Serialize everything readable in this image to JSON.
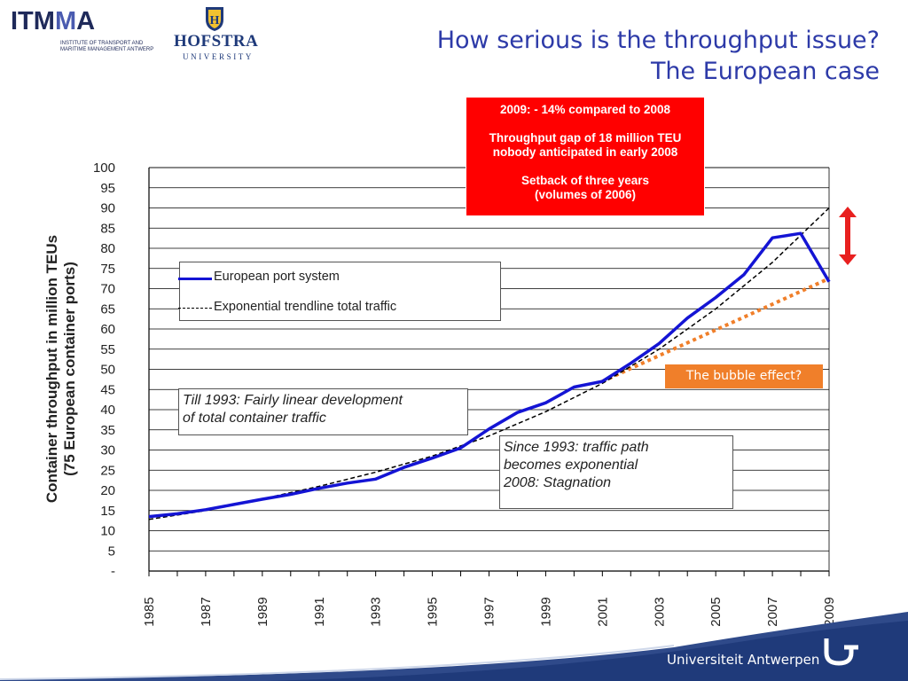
{
  "logos": {
    "itmma": {
      "wordmark": "ITMMA",
      "subtitle_line1": "INSTITUTE OF TRANSPORT AND",
      "subtitle_line2": "MARITIME MANAGEMENT ANTWERP"
    },
    "hofstra": {
      "name": "HOFSTRA",
      "sub": "UNIVERSITY"
    },
    "footer": {
      "name": "Universiteit Antwerpen"
    }
  },
  "title": {
    "line1": "How serious is the throughput issue?",
    "line2": "The European case"
  },
  "callout": {
    "line1": "2009: - 14% compared to 2008",
    "line2": "Throughput gap of 18 million TEU",
    "line3": "nobody anticipated in early 2008",
    "line4": "Setback of three years",
    "line5": "(volumes of 2006)"
  },
  "bubble_label": "The bubble effect?",
  "notes": {
    "till1993": {
      "line1": "Till 1993: Fairly linear development",
      "line2": "of total container traffic"
    },
    "since1993": {
      "line1": "Since 1993: traffic path",
      "line2": "becomes exponential",
      "line3": "2008: Stagnation"
    }
  },
  "colors": {
    "series": "#1414d4",
    "trend": "#000000",
    "linear_extrapolation": "#f07f2a",
    "callout": "#ff0000",
    "title": "#2d3aa8",
    "arrow": "#e8201f"
  },
  "chart_data": {
    "type": "line",
    "ylabel_line1": "Container throughput in million TEUs",
    "ylabel_line2": "(75 European container ports)",
    "ylim": [
      0,
      100
    ],
    "yticks": [
      "-",
      "5",
      "10",
      "15",
      "20",
      "25",
      "30",
      "35",
      "40",
      "45",
      "50",
      "55",
      "60",
      "65",
      "70",
      "75",
      "80",
      "85",
      "90",
      "95",
      "100"
    ],
    "xlim": [
      1985,
      2009
    ],
    "xticks": [
      "1985",
      "1987",
      "1989",
      "1991",
      "1993",
      "1995",
      "1997",
      "1999",
      "2001",
      "2003",
      "2005",
      "2007",
      "2009"
    ],
    "grid": "horizontal",
    "legend_position": "upper-left",
    "series": [
      {
        "name": "European port system",
        "style": "solid",
        "x": [
          1985,
          1986,
          1987,
          1988,
          1989,
          1990,
          1991,
          1992,
          1993,
          1994,
          1995,
          1996,
          1997,
          1998,
          1999,
          2000,
          2001,
          2002,
          2003,
          2004,
          2005,
          2006,
          2007,
          2008,
          2009
        ],
        "y": [
          13.5,
          14.2,
          15.2,
          16.5,
          17.8,
          19.0,
          20.5,
          21.8,
          22.8,
          25.7,
          28.0,
          30.5,
          35.2,
          39.3,
          41.7,
          45.6,
          47.0,
          51.5,
          56.4,
          62.7,
          67.8,
          73.5,
          82.6,
          83.7,
          71.7
        ]
      },
      {
        "name": "Exponential trendline total traffic",
        "style": "dashed",
        "x": [
          1985,
          1987,
          1989,
          1991,
          1993,
          1995,
          1997,
          1999,
          2001,
          2003,
          2005,
          2007,
          2009
        ],
        "y": [
          12.8,
          15.0,
          17.9,
          21.0,
          24.5,
          28.5,
          33.5,
          39.5,
          46.5,
          55.0,
          65.0,
          76.5,
          90.0
        ]
      },
      {
        "style": "dotted",
        "x": [
          2001,
          2009
        ],
        "y": [
          47.0,
          72.5
        ]
      }
    ]
  }
}
